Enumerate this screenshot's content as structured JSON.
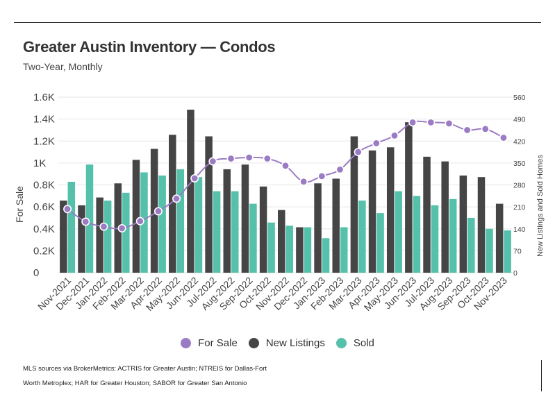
{
  "header": {
    "title": "Greater Austin Inventory — Condos",
    "subtitle": "Two-Year, Monthly"
  },
  "legend": {
    "for_sale": "For Sale",
    "new_listings": "New Listings",
    "sold": "Sold"
  },
  "footer": {
    "line1": "MLS sources via BrokerMetrics: ACTRIS for Greater Austin; NTREIS for Dallas-Fort",
    "line2": "Worth Metroplex; HAR for Greater Houston; SABOR for Greater San Antonio"
  },
  "colors": {
    "for_sale": "#9b7cc4",
    "new_listings": "#454545",
    "sold": "#55c1ab",
    "grid": "#e6e6e6"
  },
  "chart_data": {
    "type": "bar",
    "title": "Greater Austin Inventory — Condos",
    "subtitle": "Two-Year, Monthly",
    "categories": [
      "Nov-2021",
      "Dec-2021",
      "Jan-2022",
      "Feb-2022",
      "Mar-2022",
      "Apr-2022",
      "May-2022",
      "Jun-2022",
      "Jul-2022",
      "Aug-2022",
      "Sep-2022",
      "Oct-2022",
      "Nov-2022",
      "Dec-2022",
      "Jan-2023",
      "Feb-2023",
      "Mar-2023",
      "Apr-2023",
      "May-2023",
      "Jun-2023",
      "Jul-2023",
      "Aug-2023",
      "Sep-2023",
      "Oct-2023",
      "Nov-2023"
    ],
    "y_left": {
      "label": "For Sale",
      "range": [
        0,
        1600
      ],
      "ticks": [
        0,
        200,
        400,
        600,
        800,
        1000,
        1200,
        1400,
        1600
      ],
      "tick_labels": [
        "0",
        "0.2K",
        "0.4K",
        "0.6K",
        "0.8K",
        "1K",
        "1.2K",
        "1.4K",
        "1.6K"
      ]
    },
    "y_right": {
      "label": "New Listings and Sold Homes",
      "range": [
        0,
        560
      ],
      "ticks": [
        0,
        70,
        140,
        210,
        280,
        350,
        420,
        490,
        560
      ],
      "tick_labels": [
        "0",
        "70",
        "140",
        "210",
        "280",
        "350",
        "420",
        "490",
        "560"
      ]
    },
    "grid": true,
    "legend_position": "bottom",
    "series": [
      {
        "name": "For Sale",
        "type": "line",
        "axis": "left",
        "values": [
          580,
          465,
          420,
          405,
          470,
          560,
          675,
          860,
          1015,
          1040,
          1050,
          1040,
          975,
          830,
          880,
          940,
          1100,
          1180,
          1250,
          1370,
          1370,
          1360,
          1300,
          1310,
          1230
        ]
      },
      {
        "name": "New Listings",
        "type": "bar",
        "axis": "right",
        "values": [
          230,
          215,
          240,
          285,
          360,
          395,
          440,
          520,
          435,
          330,
          345,
          275,
          200,
          145,
          285,
          300,
          435,
          390,
          400,
          480,
          370,
          355,
          310,
          305,
          220
        ]
      },
      {
        "name": "Sold",
        "type": "bar",
        "axis": "right",
        "values": [
          290,
          345,
          230,
          255,
          320,
          310,
          330,
          305,
          260,
          260,
          220,
          160,
          150,
          145,
          110,
          145,
          230,
          190,
          260,
          245,
          215,
          235,
          175,
          140,
          135
        ]
      }
    ]
  }
}
